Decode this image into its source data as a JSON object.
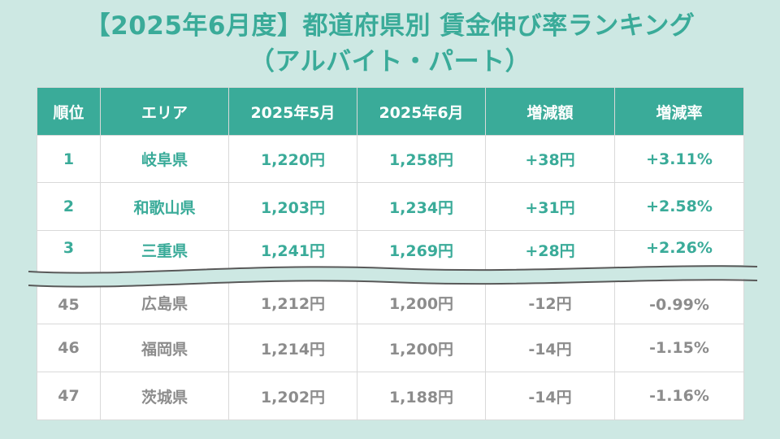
{
  "title": {
    "line1": "【2025年6月度】都道府県別 賃金伸び率ランキング",
    "line2": "（アルバイト・パート）"
  },
  "colors": {
    "accent": "#3aab99",
    "background": "#cde8e3",
    "muted_text": "#8c8c8c"
  },
  "table": {
    "headers": [
      "順位",
      "エリア",
      "2025年5月",
      "2025年6月",
      "増減額",
      "増減率"
    ],
    "rows_top": [
      [
        "1",
        "岐阜県",
        "1,220円",
        "1,258円",
        "+38円",
        "+3.11%"
      ],
      [
        "2",
        "和歌山県",
        "1,203円",
        "1,234円",
        "+31円",
        "+2.58%"
      ],
      [
        "3",
        "三重県",
        "1,241円",
        "1,269円",
        "+28円",
        "+2.26%"
      ]
    ],
    "rows_bottom": [
      [
        "45",
        "広島県",
        "1,212円",
        "1,200円",
        "-12円",
        "-0.99%"
      ],
      [
        "46",
        "福岡県",
        "1,214円",
        "1,200円",
        "-14円",
        "-1.15%"
      ],
      [
        "47",
        "茨城県",
        "1,202円",
        "1,188円",
        "-14円",
        "-1.16%"
      ]
    ]
  }
}
